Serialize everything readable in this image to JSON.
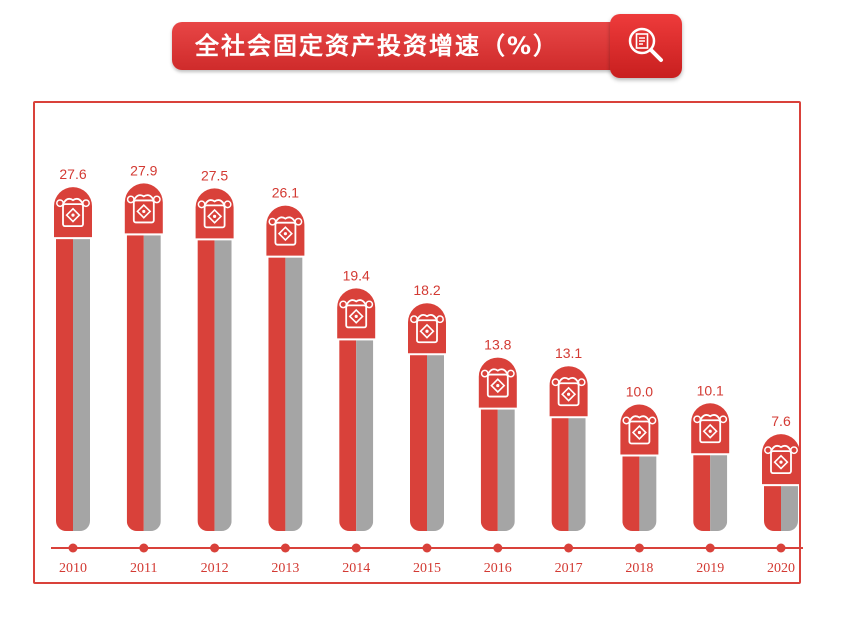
{
  "title": "全社会固定资产投资增速（%）",
  "icons": {
    "title_icon": "document-search-icon",
    "bar_cap_icon": "money-bag-icon"
  },
  "colors": {
    "accent": "#d9413a",
    "bar_red": "#d9413a",
    "bar_gray": "#a5a5a5",
    "title_bg": "#d7322f"
  },
  "chart_data": {
    "type": "bar",
    "title": "全社会固定资产投资增速（%）",
    "categories": [
      "2010",
      "2011",
      "2012",
      "2013",
      "2014",
      "2015",
      "2016",
      "2017",
      "2018",
      "2019",
      "2020"
    ],
    "values": [
      27.6,
      27.9,
      27.5,
      26.1,
      19.4,
      18.2,
      13.8,
      13.1,
      10.0,
      10.1,
      7.6
    ],
    "value_labels": [
      "27.6",
      "27.9",
      "27.5",
      "26.1",
      "19.4",
      "18.2",
      "13.8",
      "13.1",
      "10.0",
      "10.1",
      "7.6"
    ],
    "xlabel": "",
    "ylabel": "",
    "ylim": [
      0,
      30
    ],
    "grid": false,
    "legend": "none"
  }
}
